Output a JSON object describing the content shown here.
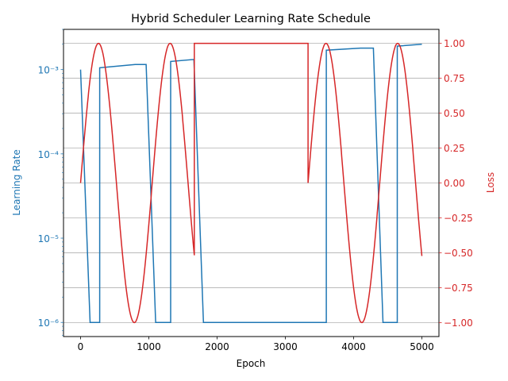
{
  "chart_data": {
    "type": "line",
    "title": "Hybrid Scheduler Learning Rate Schedule",
    "xlabel": "Epoch",
    "xlim": [
      -250,
      5250
    ],
    "x_ticks": [
      0,
      1000,
      2000,
      3000,
      4000,
      5000
    ],
    "x_tick_labels": [
      "0",
      "1000",
      "2000",
      "3000",
      "4000",
      "5000"
    ],
    "grid": "horizontal, right axis",
    "axes": {
      "left": {
        "label": "Learning Rate",
        "scale": "log",
        "ylim": [
          6.8e-07,
          0.003
        ],
        "ticks": [
          1e-06,
          1e-05,
          0.0001,
          0.001
        ],
        "tick_labels": [
          "10⁻⁶",
          "10⁻⁵",
          "10⁻⁴",
          "10⁻³"
        ],
        "color": "#1f77b4"
      },
      "right": {
        "label": "Loss",
        "scale": "linear",
        "ylim": [
          -1.1,
          1.1
        ],
        "ticks": [
          -1.0,
          -0.75,
          -0.5,
          -0.25,
          0.0,
          0.25,
          0.5,
          0.75,
          1.0
        ],
        "tick_labels": [
          "−1.00",
          "−0.75",
          "−0.50",
          "−0.25",
          "0.00",
          "0.25",
          "0.50",
          "0.75",
          "1.00"
        ],
        "color": "#d62728"
      }
    },
    "series": [
      {
        "axis": "left",
        "color": "#1f77b4",
        "points": [
          [
            0,
            0.001
          ],
          [
            140,
            1e-06
          ],
          [
            280,
            1e-06
          ],
          [
            280,
            0.00105
          ],
          [
            800,
            0.00115
          ],
          [
            960,
            0.00115
          ],
          [
            1100,
            1e-06
          ],
          [
            1320,
            1e-06
          ],
          [
            1320,
            0.00125
          ],
          [
            1660,
            0.00132
          ],
          [
            1800,
            1e-06
          ],
          [
            3600,
            1e-06
          ],
          [
            3600,
            0.0017
          ],
          [
            4100,
            0.0018
          ],
          [
            4290,
            0.0018
          ],
          [
            4430,
            1e-06
          ],
          [
            4640,
            1e-06
          ],
          [
            4640,
            0.0019
          ],
          [
            5000,
            0.002
          ]
        ]
      },
      {
        "axis": "right",
        "color": "#d62728",
        "segments": [
          {
            "start": 0,
            "end": 1666,
            "period": 1050,
            "function": "sin"
          },
          {
            "start": 1666,
            "end": 3333,
            "constant": 1.0
          },
          {
            "start": 3333,
            "end": 5000,
            "period": 1050,
            "function": "sin"
          }
        ]
      }
    ]
  }
}
